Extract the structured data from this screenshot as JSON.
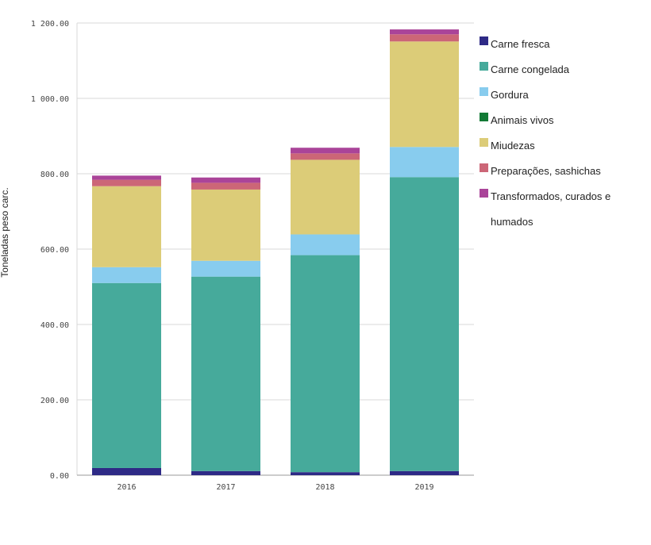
{
  "chart_data": {
    "type": "bar",
    "stacked": true,
    "title": "",
    "xlabel": "",
    "ylabel": "Toneladas peso carc.",
    "ylim": [
      0,
      1200
    ],
    "yticks": [
      0,
      200,
      400,
      600,
      800,
      1000,
      1200
    ],
    "ytick_labels": [
      "0.00",
      "200.00",
      "400.00",
      "600.00",
      "800.00",
      "1 000.00",
      "1 200.00"
    ],
    "grid": true,
    "legend_position": "right",
    "categories": [
      "2016",
      "2017",
      "2018",
      "2019"
    ],
    "series": [
      {
        "name": "Carne fresca",
        "color": "#2e2a86",
        "values": [
          19,
          11,
          8,
          11
        ]
      },
      {
        "name": "Carne congelada",
        "color": "#46aa9b",
        "values": [
          491,
          516,
          576,
          780
        ]
      },
      {
        "name": "Gordura",
        "color": "#88ccee",
        "values": [
          42,
          42,
          55,
          80
        ]
      },
      {
        "name": "Animais vivos",
        "color": "#127a35",
        "values": [
          0,
          0,
          0,
          0
        ]
      },
      {
        "name": "Miudezas",
        "color": "#dccc78",
        "values": [
          215,
          189,
          198,
          280
        ]
      },
      {
        "name": "Preparações, sashichas",
        "color": "#cc6677",
        "values": [
          17,
          18,
          17,
          19
        ]
      },
      {
        "name": "Transformados, curados e humados",
        "color": "#aa4499",
        "values": [
          11,
          14,
          15,
          13
        ]
      }
    ]
  }
}
